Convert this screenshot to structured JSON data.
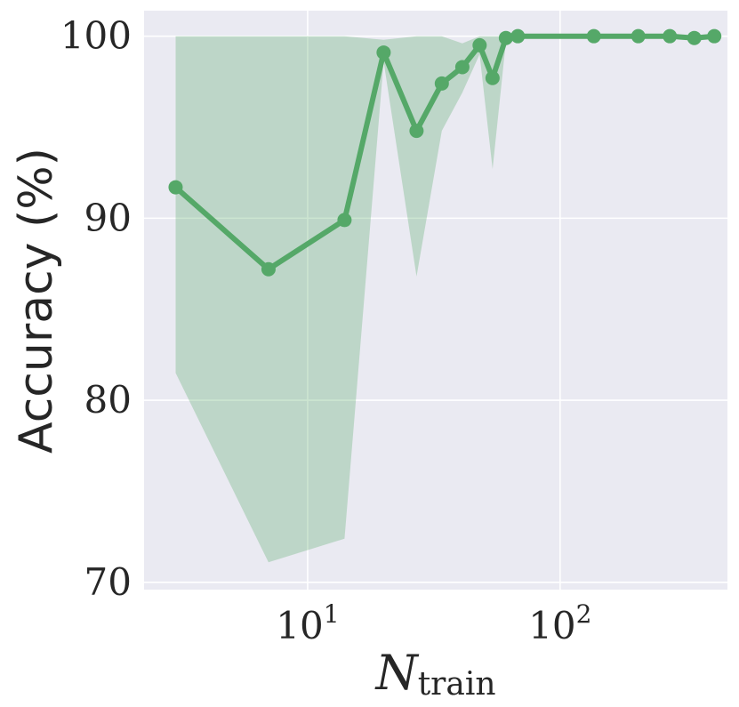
{
  "chart_data": {
    "type": "line",
    "xlabel": "N",
    "xlabel_subscript": "train",
    "ylabel": "Accuracy (%)",
    "xscale": "log",
    "xlim": [
      2.25,
      460
    ],
    "ylim": [
      69.6,
      101.4
    ],
    "x_ticks": [
      {
        "value": 10,
        "base": "10",
        "exp": "1"
      },
      {
        "value": 100,
        "base": "10",
        "exp": "2"
      }
    ],
    "y_ticks": [
      70,
      80,
      90,
      100
    ],
    "grid": true,
    "colors": {
      "line": "#55a868",
      "band": "#55a868",
      "background": "#eaeaf2",
      "grid": "#ffffff"
    },
    "series": [
      {
        "x": [
          3,
          7,
          14,
          20,
          27,
          34,
          41,
          48,
          54,
          61,
          68,
          136,
          204,
          272,
          340,
          408
        ],
        "y": [
          91.7,
          87.2,
          89.9,
          99.1,
          94.8,
          97.4,
          98.3,
          99.5,
          97.7,
          99.9,
          100,
          100,
          100,
          100,
          99.9,
          100
        ],
        "lower": [
          81.5,
          71.1,
          72.4,
          98.6,
          86.8,
          94.8,
          96.9,
          99.0,
          92.7,
          99.7,
          100,
          100,
          100,
          100,
          99.8,
          100
        ],
        "upper": [
          100,
          100,
          100,
          99.8,
          100,
          100,
          99.6,
          100,
          100,
          100,
          100,
          100,
          100,
          100,
          100,
          100
        ]
      }
    ]
  }
}
